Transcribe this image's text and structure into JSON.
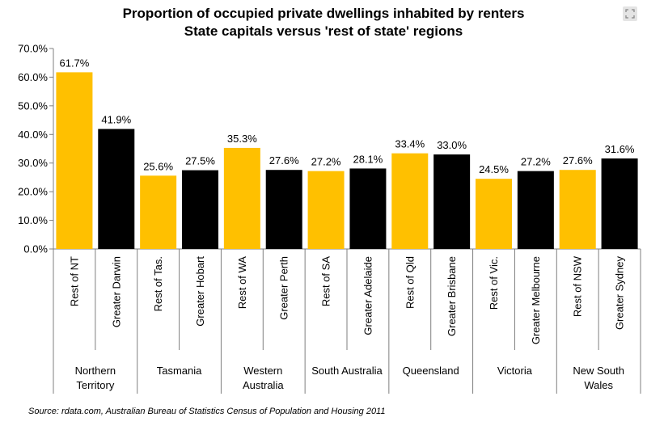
{
  "title": "Proportion of occupied private dwellings inhabited by renters",
  "subtitle": "State capitals versus 'rest of state' regions",
  "source": "Source:  rdata.com, Australian Bureau of Statistics Census of Population and Housing 2011",
  "icons": {
    "expand": "expand-icon"
  },
  "colors": {
    "rest_of_state": "#FFC000",
    "capital": "#000000"
  },
  "chart_data": {
    "type": "bar",
    "title": "Proportion of occupied private dwellings inhabited by renters",
    "subtitle": "State capitals versus 'rest of state' regions",
    "ylim": [
      0,
      70
    ],
    "yticks": [
      "0.0%",
      "10.0%",
      "20.0%",
      "30.0%",
      "40.0%",
      "50.0%",
      "60.0%",
      "70.0%"
    ],
    "grid": false,
    "legend": "none",
    "groups": [
      "Northern Territory",
      "Tasmania",
      "Western Australia",
      "South Australia",
      "Queensland",
      "Victoria",
      "New South Wales"
    ],
    "categories": [
      "Rest of NT",
      "Greater Darwin",
      "Rest of Tas.",
      "Greater Hobart",
      "Rest of WA",
      "Greater Perth",
      "Rest of SA",
      "Greater Adelaide",
      "Rest of Qld",
      "Greater Brisbane",
      "Rest of Vic.",
      "Greater Melbourne",
      "Rest of NSW",
      "Greater Sydney"
    ],
    "values": [
      61.7,
      41.9,
      25.6,
      27.5,
      35.3,
      27.6,
      27.2,
      28.1,
      33.4,
      33.0,
      24.5,
      27.2,
      27.6,
      31.6
    ],
    "data_labels": [
      "61.7%",
      "41.9%",
      "25.6%",
      "27.5%",
      "35.3%",
      "27.6%",
      "27.2%",
      "28.1%",
      "33.4%",
      "33.0%",
      "24.5%",
      "27.2%",
      "27.6%",
      "31.6%"
    ]
  }
}
